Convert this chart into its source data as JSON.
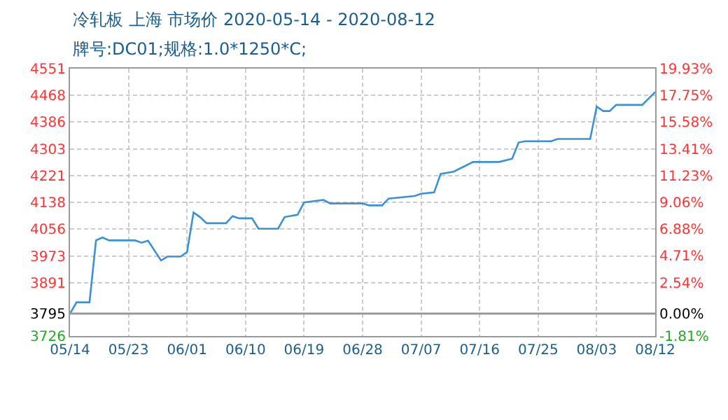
{
  "chart_data": {
    "type": "line",
    "title": "冷轧板 上海 市场价 2020-05-14 - 2020-08-12",
    "subtitle": "牌号:DC01;规格:1.0*1250*C;",
    "x": [
      "2020-05-14",
      "2020-05-15",
      "2020-05-17",
      "2020-05-18",
      "2020-05-19",
      "2020-05-20",
      "2020-05-24",
      "2020-05-25",
      "2020-05-26",
      "2020-05-28",
      "2020-05-29",
      "2020-05-31",
      "2020-06-01",
      "2020-06-02",
      "2020-06-03",
      "2020-06-04",
      "2020-06-07",
      "2020-06-08",
      "2020-06-09",
      "2020-06-11",
      "2020-06-12",
      "2020-06-15",
      "2020-06-16",
      "2020-06-18",
      "2020-06-19",
      "2020-06-22",
      "2020-06-23",
      "2020-06-28",
      "2020-06-29",
      "2020-07-01",
      "2020-07-02",
      "2020-07-06",
      "2020-07-07",
      "2020-07-09",
      "2020-07-10",
      "2020-07-12",
      "2020-07-15",
      "2020-07-19",
      "2020-07-21",
      "2020-07-22",
      "2020-07-23",
      "2020-07-27",
      "2020-07-28",
      "2020-08-02",
      "2020-08-03",
      "2020-08-04",
      "2020-08-05",
      "2020-08-06",
      "2020-08-10",
      "2020-08-12"
    ],
    "series": [
      {
        "color": "#3a92d4",
        "values": [
          3795,
          3830,
          3830,
          4021,
          4030,
          4021,
          4021,
          4014,
          4020,
          3959,
          3971,
          3971,
          3985,
          4107,
          4093,
          4074,
          4074,
          4096,
          4089,
          4089,
          4057,
          4057,
          4093,
          4100,
          4138,
          4146,
          4135,
          4135,
          4129,
          4129,
          4150,
          4158,
          4165,
          4169,
          4226,
          4233,
          4263,
          4263,
          4273,
          4323,
          4327,
          4327,
          4334,
          4334,
          4434,
          4420,
          4420,
          4439,
          4439,
          4479
        ]
      }
    ],
    "xlim": [
      "2020-05-14",
      "2020-08-12"
    ],
    "xticks": [
      {
        "value": "2020-05-14",
        "label": "05/14"
      },
      {
        "value": "2020-05-23",
        "label": "05/23"
      },
      {
        "value": "2020-06-01",
        "label": "06/01"
      },
      {
        "value": "2020-06-10",
        "label": "06/10"
      },
      {
        "value": "2020-06-19",
        "label": "06/19"
      },
      {
        "value": "2020-06-28",
        "label": "06/28"
      },
      {
        "value": "2020-07-07",
        "label": "07/07"
      },
      {
        "value": "2020-07-16",
        "label": "07/16"
      },
      {
        "value": "2020-07-25",
        "label": "07/25"
      },
      {
        "value": "2020-08-03",
        "label": "08/03"
      },
      {
        "value": "2020-08-12",
        "label": "08/12"
      }
    ],
    "ylim": [
      3726,
      4551
    ],
    "yticks": [
      3726,
      3795,
      3891,
      3973,
      4056,
      4138,
      4221,
      4303,
      4386,
      4468,
      4551
    ],
    "y2lim": [
      -1.81,
      19.93
    ],
    "y2ticks": [
      {
        "value": -1.81,
        "label": "-1.81%"
      },
      {
        "value": 0,
        "label": "0.00%"
      },
      {
        "value": 2.54,
        "label": "2.54%"
      },
      {
        "value": 4.71,
        "label": "4.71%"
      },
      {
        "value": 6.88,
        "label": "6.88%"
      },
      {
        "value": 9.06,
        "label": "9.06%"
      },
      {
        "value": 11.23,
        "label": "11.23%"
      },
      {
        "value": 13.41,
        "label": "13.41%"
      },
      {
        "value": 15.58,
        "label": "15.58%"
      },
      {
        "value": 17.75,
        "label": "17.75%"
      },
      {
        "value": 19.93,
        "label": "19.93%"
      }
    ],
    "ref_lines": [
      {
        "axis": "y",
        "value": 3795,
        "color": "#999999"
      }
    ],
    "grid": true,
    "marker": "none",
    "line_style": "solid"
  }
}
